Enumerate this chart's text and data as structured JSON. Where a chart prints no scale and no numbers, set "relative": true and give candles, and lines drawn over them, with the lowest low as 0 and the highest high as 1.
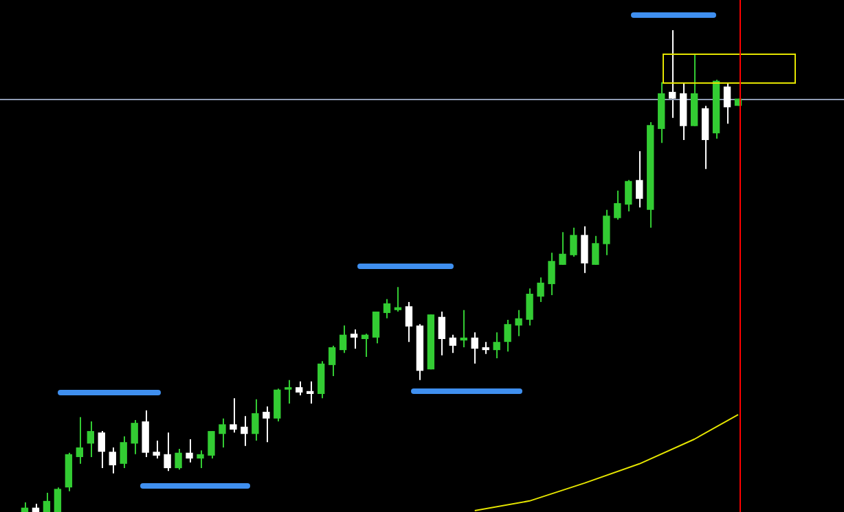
{
  "chart_data": {
    "type": "candlestick",
    "relative": true,
    "legend": false,
    "grid": false,
    "categories": [
      null,
      null,
      null,
      null,
      null,
      null,
      null,
      null,
      null,
      null,
      null,
      null,
      null,
      null,
      null,
      null,
      null,
      null,
      null,
      null,
      null,
      null,
      null,
      null,
      null,
      null,
      null,
      null,
      null,
      null,
      null,
      null,
      null,
      null,
      null,
      null,
      null,
      null,
      null,
      null,
      null,
      null,
      null,
      null,
      null,
      null,
      null,
      null,
      null,
      null,
      null,
      null,
      null,
      null,
      null,
      null,
      null,
      null,
      null,
      null,
      null,
      null,
      null,
      null,
      null,
      null
    ],
    "ohlc": [
      [
        0,
        0.02,
        0,
        0.009
      ],
      [
        0.009,
        0.017,
        0,
        0
      ],
      [
        0,
        0.04,
        0,
        0.023
      ],
      [
        0,
        0.051,
        0,
        0.048
      ],
      [
        0.051,
        0.123,
        0.043,
        0.12
      ],
      [
        0.114,
        0.197,
        0.1,
        0.134
      ],
      [
        0.142,
        0.188,
        0.114,
        0.168
      ],
      [
        0.165,
        0.168,
        0.091,
        0.125
      ],
      [
        0.125,
        0.134,
        0.08,
        0.097
      ],
      [
        0.1,
        0.157,
        0.091,
        0.145
      ],
      [
        0.142,
        0.191,
        0.12,
        0.185
      ],
      [
        0.188,
        0.211,
        0.114,
        0.123
      ],
      [
        0.125,
        0.148,
        0.111,
        0.117
      ],
      [
        0.12,
        0.165,
        0.085,
        0.091
      ],
      [
        0.091,
        0.131,
        0.088,
        0.123
      ],
      [
        0.123,
        0.151,
        0.103,
        0.111
      ],
      [
        0.111,
        0.128,
        0.091,
        0.12
      ],
      [
        0.117,
        0.168,
        0.111,
        0.168
      ],
      [
        0.162,
        0.194,
        0.134,
        0.182
      ],
      [
        0.182,
        0.236,
        0.165,
        0.171
      ],
      [
        0.177,
        0.199,
        0.137,
        0.162
      ],
      [
        0.162,
        0.234,
        0.148,
        0.205
      ],
      [
        0.208,
        0.219,
        0.145,
        0.194
      ],
      [
        0.194,
        0.256,
        0.188,
        0.254
      ],
      [
        0.254,
        0.274,
        0.225,
        0.259
      ],
      [
        0.259,
        0.271,
        0.242,
        0.248
      ],
      [
        0.251,
        0.271,
        0.225,
        0.245
      ],
      [
        0.245,
        0.313,
        0.236,
        0.308
      ],
      [
        0.305,
        0.345,
        0.282,
        0.342
      ],
      [
        0.336,
        0.387,
        0.33,
        0.368
      ],
      [
        0.37,
        0.379,
        0.339,
        0.362
      ],
      [
        0.359,
        0.37,
        0.322,
        0.368
      ],
      [
        0.362,
        0.416,
        0.35,
        0.416
      ],
      [
        0.413,
        0.442,
        0.402,
        0.433
      ],
      [
        0.419,
        0.467,
        0.416,
        0.425
      ],
      [
        0.427,
        0.436,
        0.353,
        0.385
      ],
      [
        0.387,
        0.39,
        0.274,
        0.293
      ],
      [
        0.296,
        0.41,
        0.296,
        0.41
      ],
      [
        0.405,
        0.416,
        0.325,
        0.359
      ],
      [
        0.362,
        0.368,
        0.33,
        0.345
      ],
      [
        0.356,
        0.419,
        0.342,
        0.362
      ],
      [
        0.362,
        0.373,
        0.308,
        0.339
      ],
      [
        0.342,
        0.353,
        0.328,
        0.336
      ],
      [
        0.336,
        0.373,
        0.319,
        0.353
      ],
      [
        0.353,
        0.399,
        0.333,
        0.39
      ],
      [
        0.387,
        0.419,
        0.365,
        0.402
      ],
      [
        0.399,
        0.464,
        0.387,
        0.453
      ],
      [
        0.447,
        0.487,
        0.436,
        0.476
      ],
      [
        0.473,
        0.538,
        0.45,
        0.521
      ],
      [
        0.513,
        0.581,
        0.513,
        0.536
      ],
      [
        0.533,
        0.59,
        0.53,
        0.575
      ],
      [
        0.575,
        0.593,
        0.496,
        0.516
      ],
      [
        0.513,
        0.573,
        0.513,
        0.558
      ],
      [
        0.556,
        0.627,
        0.533,
        0.615
      ],
      [
        0.61,
        0.667,
        0.607,
        0.641
      ],
      [
        0.638,
        0.689,
        0.624,
        0.687
      ],
      [
        0.689,
        0.749,
        0.632,
        0.65
      ],
      [
        0.627,
        0.809,
        0.59,
        0.803
      ],
      [
        0.795,
        0.892,
        0.766,
        0.869
      ],
      [
        0.872,
        1,
        0.818,
        0.858
      ],
      [
        0.869,
        0.889,
        0.772,
        0.801
      ],
      [
        0.801,
        0.949,
        0.801,
        0.869
      ],
      [
        0.838,
        0.843,
        0.712,
        0.772
      ],
      [
        0.786,
        0.897,
        0.775,
        0.895
      ],
      [
        0.883,
        0.889,
        0.806,
        0.84
      ],
      [
        0.843,
        0.858,
        0.843,
        0.858
      ]
    ],
    "colors": [
      "#33cc33",
      "#ffffff",
      "#33cc33",
      "#33cc33",
      "#33cc33",
      "#33cc33",
      "#33cc33",
      "#ffffff",
      "#ffffff",
      "#33cc33",
      "#33cc33",
      "#ffffff",
      "#ffffff",
      "#ffffff",
      "#33cc33",
      "#ffffff",
      "#33cc33",
      "#33cc33",
      "#33cc33",
      "#ffffff",
      "#ffffff",
      "#33cc33",
      "#ffffff",
      "#33cc33",
      "#33cc33",
      "#ffffff",
      "#ffffff",
      "#33cc33",
      "#33cc33",
      "#33cc33",
      "#ffffff",
      "#33cc33",
      "#33cc33",
      "#33cc33",
      "#33cc33",
      "#ffffff",
      "#ffffff",
      "#33cc33",
      "#ffffff",
      "#ffffff",
      "#33cc33",
      "#ffffff",
      "#ffffff",
      "#33cc33",
      "#33cc33",
      "#33cc33",
      "#33cc33",
      "#33cc33",
      "#33cc33",
      "#33cc33",
      "#33cc33",
      "#ffffff",
      "#33cc33",
      "#33cc33",
      "#33cc33",
      "#33cc33",
      "#ffffff",
      "#33cc33",
      "#33cc33",
      "#ffffff",
      "#ffffff",
      "#33cc33",
      "#ffffff",
      "#33cc33",
      "#ffffff",
      "#33cc33"
    ],
    "series": [
      {
        "type": "line",
        "color": "#e6e600",
        "values": [
          null,
          null,
          null,
          null,
          null,
          null,
          null,
          null,
          null,
          null,
          null,
          null,
          null,
          null,
          null,
          null,
          null,
          null,
          null,
          null,
          null,
          null,
          null,
          null,
          null,
          null,
          null,
          null,
          null,
          null,
          null,
          null,
          null,
          null,
          null,
          null,
          null,
          null,
          null,
          null,
          null,
          0.003,
          null,
          null,
          null,
          null,
          0.023,
          null,
          null,
          null,
          null,
          0.06,
          null,
          null,
          null,
          null,
          0.1,
          null,
          null,
          null,
          null,
          0.151,
          null,
          null,
          null,
          0.202
        ]
      }
    ],
    "ref_lines": [
      {
        "axis": "y",
        "value": 0.858,
        "color": "#8f9bb3"
      }
    ]
  }
}
